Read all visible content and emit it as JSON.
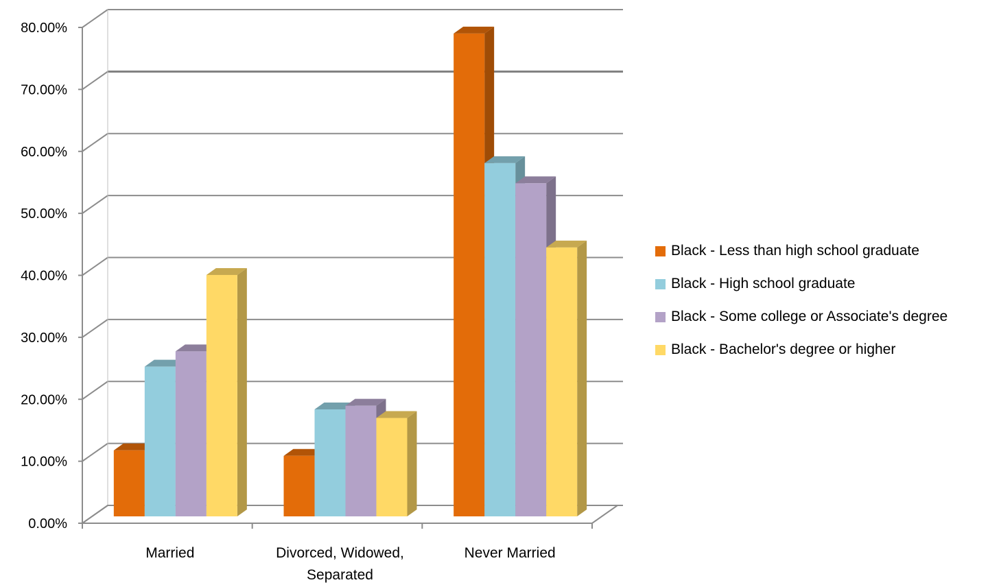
{
  "chart_data": {
    "type": "bar",
    "title": "",
    "xlabel": "",
    "ylabel": "",
    "categories": [
      "Married",
      "Divorced, Widowed, Separated",
      "Never Married"
    ],
    "category_lines": [
      [
        "Married"
      ],
      [
        "Divorced, Widowed,",
        "Separated"
      ],
      [
        "Never Married"
      ]
    ],
    "ylim": [
      0,
      0.8
    ],
    "yticks": [
      0,
      0.1,
      0.2,
      0.3,
      0.4,
      0.5,
      0.6,
      0.7,
      0.8
    ],
    "ytick_labels": [
      "0.00%",
      "10.00%",
      "20.00%",
      "30.00%",
      "40.00%",
      "50.00%",
      "60.00%",
      "70.00%",
      "80.00%"
    ],
    "grid": true,
    "legend_position": "right",
    "series": [
      {
        "name": "Black - Less than high school graduate",
        "color": "#E36C09",
        "values": [
          0.108,
          0.099,
          0.79
        ]
      },
      {
        "name": "Black - High school graduate",
        "color": "#93CDDD",
        "values": [
          0.245,
          0.175,
          0.578
        ]
      },
      {
        "name": "Black - Some college or Associate's degree",
        "color": "#B3A2C7",
        "values": [
          0.27,
          0.181,
          0.545
        ]
      },
      {
        "name": "Black - Bachelor's degree or higher",
        "color": "#FFD966",
        "values": [
          0.395,
          0.161,
          0.44
        ]
      }
    ]
  }
}
